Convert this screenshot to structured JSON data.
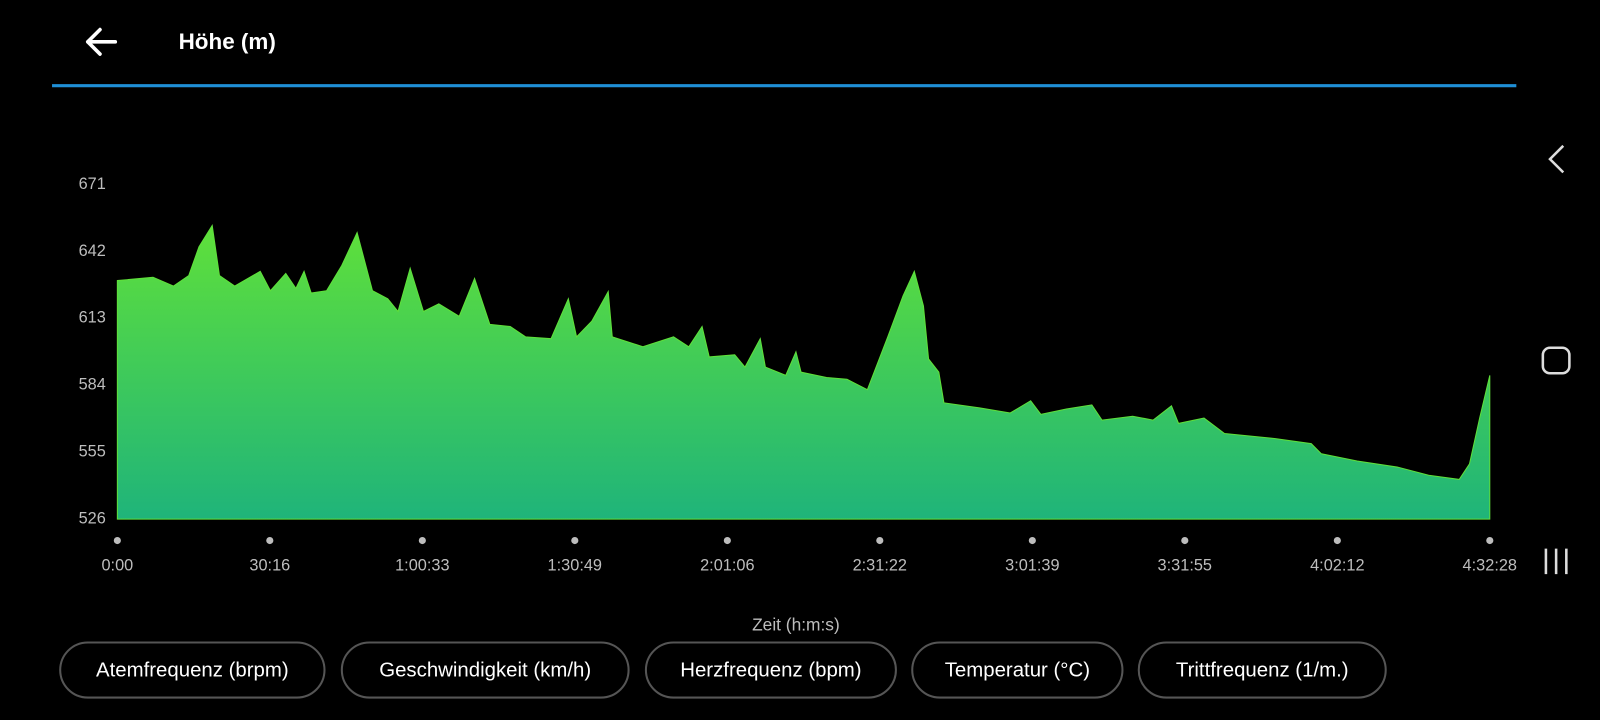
{
  "header": {
    "title": "Höhe (m)"
  },
  "chart_data": {
    "type": "area",
    "xlabel": "Zeit (h:m:s)",
    "x": [
      0,
      425,
      669,
      851,
      972,
      1130,
      1216,
      1398,
      1702,
      1823,
      2006,
      2127,
      2224,
      2309,
      2492,
      2674,
      2856,
      3039,
      3221,
      3343,
      3488,
      3646,
      3829,
      4072,
      4255,
      4437,
      4680,
      4862,
      5166,
      5372,
      5470,
      5652,
      5847,
      5895,
      6260,
      6625,
      6807,
      6965,
      7050,
      7354,
      7476,
      7658,
      7719,
      7962,
      8083,
      8144,
      8448,
      8691,
      8934,
      9177,
      9359,
      9493,
      9602,
      9663,
      9785,
      9846,
      10271,
      10636,
      10879,
      11000,
      11304,
      11608,
      11729,
      12094,
      12337,
      12556,
      12640,
      12944,
      13188,
      13795,
      14221,
      14342,
      14768,
      15255,
      15620,
      15984,
      16106,
      16227,
      16348
    ],
    "values": [
      629.4,
      630.8,
      627,
      631.6,
      644,
      653.3,
      631.6,
      627,
      633.4,
      625,
      632.5,
      626,
      633.4,
      624,
      625,
      636,
      650.2,
      625,
      621.5,
      616,
      634.7,
      616,
      619.3,
      613.9,
      630.3,
      610.4,
      609.5,
      605,
      604.2,
      621.5,
      605,
      611.8,
      624.6,
      605,
      600.7,
      605,
      600.7,
      609.5,
      596.3,
      597.2,
      591.9,
      604.2,
      591.9,
      588.3,
      598.5,
      589.7,
      587.4,
      586.6,
      582.1,
      605,
      622.8,
      633.4,
      618.4,
      595.4,
      589.7,
      576.4,
      574.2,
      572,
      577.3,
      571.4,
      573.7,
      575.5,
      568.9,
      570.6,
      568.9,
      575.1,
      567.5,
      569.8,
      563.1,
      560.9,
      558.7,
      554.3,
      551.2,
      548.5,
      545,
      543.2,
      549.9,
      569.8,
      588.3
    ],
    "colors": [
      "#5fe03a",
      "#1fb47a"
    ],
    "xlim": [
      0,
      16348
    ],
    "xticks": [
      {
        "value": 0,
        "label": "0:00"
      },
      {
        "value": 1816,
        "label": "30:16"
      },
      {
        "value": 3633,
        "label": "1:00:33"
      },
      {
        "value": 5449,
        "label": "1:30:49"
      },
      {
        "value": 7266,
        "label": "2:01:06"
      },
      {
        "value": 9082,
        "label": "2:31:22"
      },
      {
        "value": 10899,
        "label": "3:01:39"
      },
      {
        "value": 12715,
        "label": "3:31:55"
      },
      {
        "value": 14532,
        "label": "4:02:12"
      },
      {
        "value": 16348,
        "label": "4:32:28"
      }
    ],
    "ylim": [
      526,
      671
    ],
    "yticks": [
      526,
      555,
      584,
      613,
      642,
      671
    ]
  },
  "buttons": [
    "Atemfrequenz (brpm)",
    "Geschwindigkeit (km/h)",
    "Herzfrequenz (bpm)",
    "Temperatur (°C)",
    "Trittfrequenz (1/m.)"
  ]
}
